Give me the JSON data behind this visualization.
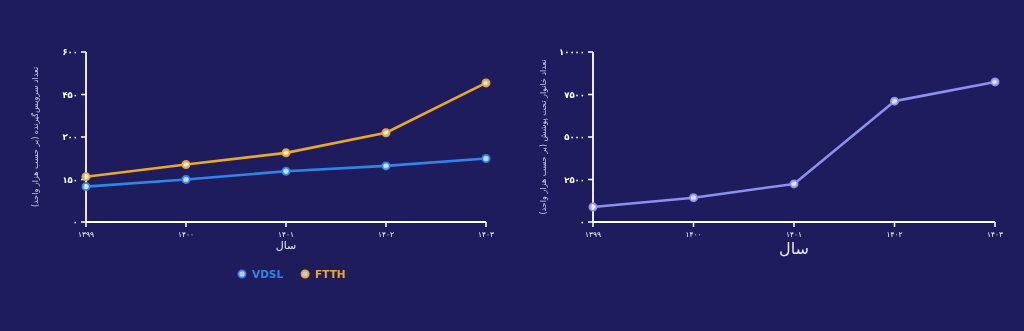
{
  "chart_data": [
    {
      "type": "line",
      "categories": [
        "۱۳۹۹",
        "۱۴۰۰",
        "۱۴۰۱",
        "۱۴۰۲",
        "۱۴۰۳"
      ],
      "series": [
        {
          "name": "VDSL",
          "color": "#2f86e8",
          "values": [
            125,
            150,
            179,
            198,
            224
          ]
        },
        {
          "name": "FTTH",
          "color": "#e8a82e",
          "values": [
            160,
            203,
            244,
            315,
            491
          ]
        }
      ],
      "ylim": [
        0,
        600
      ],
      "yticks": [
        {
          "value": 0,
          "label": "۰"
        },
        {
          "value": 150,
          "label": "۱۵۰"
        },
        {
          "value": 300,
          "label": "۳۰۰"
        },
        {
          "value": 450,
          "label": "۴۵۰"
        },
        {
          "value": 600,
          "label": "۶۰۰"
        }
      ],
      "xlabel": "سال",
      "ylabel": "تعداد سرویس‌گیرنده (بر حسب هزار واحد)",
      "marker": "circle",
      "legend": "bottom"
    },
    {
      "type": "line",
      "categories": [
        "۱۳۹۹",
        "۱۴۰۰",
        "۱۴۰۱",
        "۱۴۰۲",
        "۱۴۰۳"
      ],
      "series": [
        {
          "color": "#8f8ff0",
          "values": [
            880,
            1430,
            2240,
            7110,
            8240
          ]
        }
      ],
      "ylim": [
        0,
        10000
      ],
      "yticks": [
        {
          "value": 0,
          "label": "۰"
        },
        {
          "value": 2500,
          "label": "۲۵۰۰"
        },
        {
          "value": 5000,
          "label": "۵۰۰۰"
        },
        {
          "value": 7500,
          "label": "۷۵۰۰"
        },
        {
          "value": 10000,
          "label": "۱۰۰۰۰"
        }
      ],
      "xlabel": "سال",
      "ylabel": "تعداد خانوار تحت پوشش (بر حسب هزار واحد)",
      "marker": "circle"
    }
  ]
}
